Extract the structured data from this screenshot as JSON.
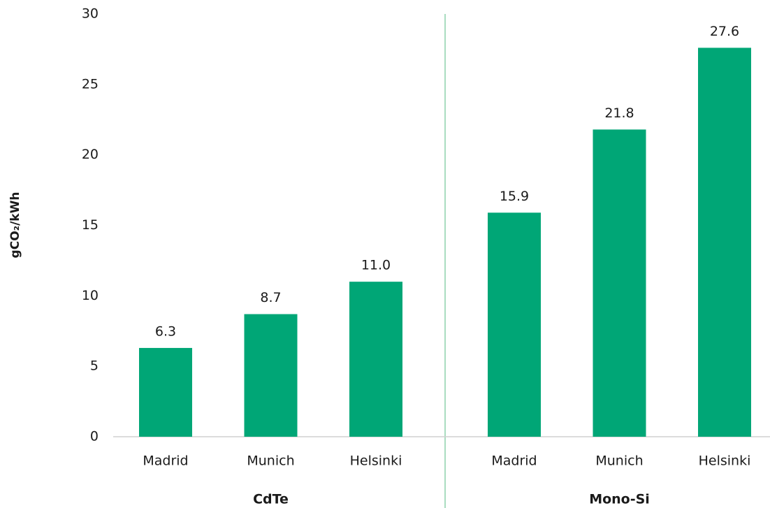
{
  "chart_data": {
    "type": "bar",
    "ylabel": "gCO₂/kWh",
    "groups": [
      {
        "name": "CdTe",
        "categories": [
          "Madrid",
          "Munich",
          "Helsinki"
        ],
        "values": [
          6.3,
          8.7,
          11.0
        ],
        "value_labels": [
          "6.3",
          "8.7",
          "11.0"
        ]
      },
      {
        "name": "Mono-Si",
        "categories": [
          "Madrid",
          "Munich",
          "Helsinki"
        ],
        "values": [
          15.9,
          21.8,
          27.6
        ],
        "value_labels": [
          "15.9",
          "21.8",
          "27.6"
        ]
      }
    ],
    "color": "#00a676",
    "ylim": [
      0,
      30
    ],
    "yticks": [
      0,
      5,
      10,
      15,
      20,
      25,
      30
    ],
    "grid": false
  }
}
